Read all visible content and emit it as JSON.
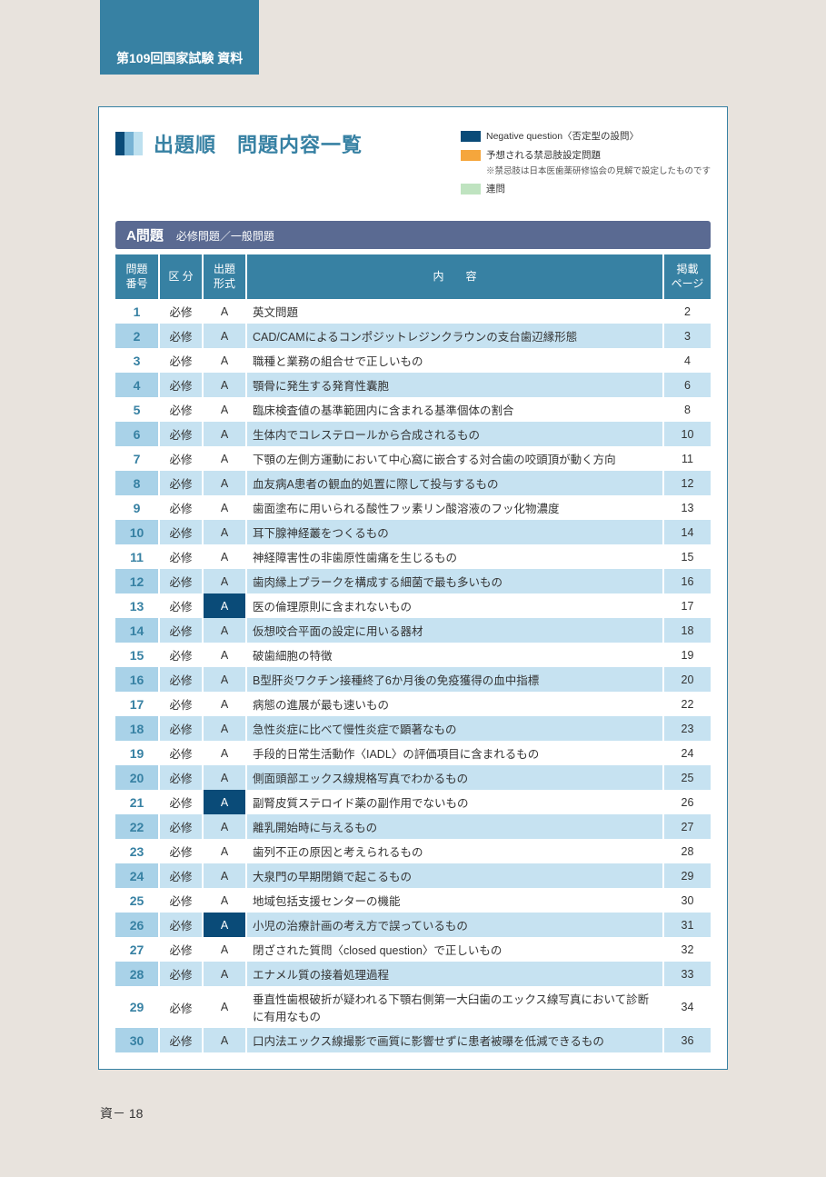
{
  "colors": {
    "page_bg": "#e8e3dd",
    "panel_bg": "#ffffff",
    "panel_border": "#3781a3",
    "tab_bg": "#3781a3",
    "tab_text": "#ffffff",
    "title_text": "#3781a3",
    "title_bar_1": "#0a4b78",
    "title_bar_2": "#77b3d4",
    "title_bar_3": "#bde0ef",
    "section_bar_bg": "#5a6a92",
    "section_bar_text": "#ffffff",
    "thead_bg": "#3781a3",
    "thead_text": "#ffffff",
    "row_even_bg": "#ffffff",
    "row_odd_bg": "#c6e2f1",
    "row_odd_num_bg": "#a9d2e8",
    "number_text": "#3781a3",
    "legend_negative": "#0a4b78",
    "legend_forbidden": "#f5a63c",
    "legend_linked": "#bfe3c0"
  },
  "tab_header": "第109回国家試験 資料",
  "main_title": "出題順　問題内容一覧",
  "legend": {
    "negative": {
      "label": "Negative question〈否定型の設問〉",
      "color": "#0a4b78"
    },
    "forbidden": {
      "label": "予想される禁忌肢設定問題",
      "note": "※禁忌肢は日本医歯薬研修協会の見解で設定したものです",
      "color": "#f5a63c"
    },
    "linked": {
      "label": "連問",
      "color": "#bfe3c0"
    }
  },
  "section": {
    "title": "A問題",
    "subtitle": "必修問題／一般問題"
  },
  "table": {
    "headers": {
      "num": "問題\n番号",
      "kubun": "区 分",
      "keishiki": "出題\n形式",
      "naiyou": "内　　容",
      "page": "掲載\nページ"
    },
    "rows": [
      {
        "num": "1",
        "kubun": "必修",
        "keishiki": "A",
        "format_flag": "",
        "naiyou": "英文問題",
        "page": "2"
      },
      {
        "num": "2",
        "kubun": "必修",
        "keishiki": "A",
        "format_flag": "",
        "naiyou": "CAD/CAMによるコンポジットレジンクラウンの支台歯辺縁形態",
        "page": "3"
      },
      {
        "num": "3",
        "kubun": "必修",
        "keishiki": "A",
        "format_flag": "",
        "naiyou": "職種と業務の組合せで正しいもの",
        "page": "4"
      },
      {
        "num": "4",
        "kubun": "必修",
        "keishiki": "A",
        "format_flag": "",
        "naiyou": "顎骨に発生する発育性囊胞",
        "page": "6"
      },
      {
        "num": "5",
        "kubun": "必修",
        "keishiki": "A",
        "format_flag": "",
        "naiyou": "臨床検査値の基準範囲内に含まれる基準個体の割合",
        "page": "8"
      },
      {
        "num": "6",
        "kubun": "必修",
        "keishiki": "A",
        "format_flag": "",
        "naiyou": "生体内でコレステロールから合成されるもの",
        "page": "10"
      },
      {
        "num": "7",
        "kubun": "必修",
        "keishiki": "A",
        "format_flag": "",
        "naiyou": "下顎の左側方運動において中心窩に嵌合する対合歯の咬頭頂が動く方向",
        "page": "11"
      },
      {
        "num": "8",
        "kubun": "必修",
        "keishiki": "A",
        "format_flag": "",
        "naiyou": "血友病A患者の観血的処置に際して投与するもの",
        "page": "12"
      },
      {
        "num": "9",
        "kubun": "必修",
        "keishiki": "A",
        "format_flag": "",
        "naiyou": "歯面塗布に用いられる酸性フッ素リン酸溶液のフッ化物濃度",
        "page": "13"
      },
      {
        "num": "10",
        "kubun": "必修",
        "keishiki": "A",
        "format_flag": "",
        "naiyou": "耳下腺神経叢をつくるもの",
        "page": "14"
      },
      {
        "num": "11",
        "kubun": "必修",
        "keishiki": "A",
        "format_flag": "",
        "naiyou": "神経障害性の非歯原性歯痛を生じるもの",
        "page": "15"
      },
      {
        "num": "12",
        "kubun": "必修",
        "keishiki": "A",
        "format_flag": "",
        "naiyou": "歯肉縁上プラークを構成する細菌で最も多いもの",
        "page": "16"
      },
      {
        "num": "13",
        "kubun": "必修",
        "keishiki": "A",
        "format_flag": "negative",
        "naiyou": "医の倫理原則に含まれないもの",
        "page": "17"
      },
      {
        "num": "14",
        "kubun": "必修",
        "keishiki": "A",
        "format_flag": "",
        "naiyou": "仮想咬合平面の設定に用いる器材",
        "page": "18"
      },
      {
        "num": "15",
        "kubun": "必修",
        "keishiki": "A",
        "format_flag": "",
        "naiyou": "破歯細胞の特徴",
        "page": "19"
      },
      {
        "num": "16",
        "kubun": "必修",
        "keishiki": "A",
        "format_flag": "",
        "naiyou": "B型肝炎ワクチン接種終了6か月後の免疫獲得の血中指標",
        "page": "20"
      },
      {
        "num": "17",
        "kubun": "必修",
        "keishiki": "A",
        "format_flag": "",
        "naiyou": "病態の進展が最も速いもの",
        "page": "22"
      },
      {
        "num": "18",
        "kubun": "必修",
        "keishiki": "A",
        "format_flag": "",
        "naiyou": "急性炎症に比べて慢性炎症で顕著なもの",
        "page": "23"
      },
      {
        "num": "19",
        "kubun": "必修",
        "keishiki": "A",
        "format_flag": "",
        "naiyou": "手段的日常生活動作〈IADL〉の評価項目に含まれるもの",
        "page": "24"
      },
      {
        "num": "20",
        "kubun": "必修",
        "keishiki": "A",
        "format_flag": "",
        "naiyou": "側面頭部エックス線規格写真でわかるもの",
        "page": "25"
      },
      {
        "num": "21",
        "kubun": "必修",
        "keishiki": "A",
        "format_flag": "negative",
        "naiyou": "副腎皮質ステロイド薬の副作用でないもの",
        "page": "26"
      },
      {
        "num": "22",
        "kubun": "必修",
        "keishiki": "A",
        "format_flag": "",
        "naiyou": "離乳開始時に与えるもの",
        "page": "27"
      },
      {
        "num": "23",
        "kubun": "必修",
        "keishiki": "A",
        "format_flag": "",
        "naiyou": "歯列不正の原因と考えられるもの",
        "page": "28"
      },
      {
        "num": "24",
        "kubun": "必修",
        "keishiki": "A",
        "format_flag": "",
        "naiyou": "大泉門の早期閉鎖で起こるもの",
        "page": "29"
      },
      {
        "num": "25",
        "kubun": "必修",
        "keishiki": "A",
        "format_flag": "",
        "naiyou": "地域包括支援センターの機能",
        "page": "30"
      },
      {
        "num": "26",
        "kubun": "必修",
        "keishiki": "A",
        "format_flag": "negative",
        "naiyou": "小児の治療計画の考え方で誤っているもの",
        "page": "31"
      },
      {
        "num": "27",
        "kubun": "必修",
        "keishiki": "A",
        "format_flag": "",
        "naiyou": "閉ざされた質問〈closed question〉で正しいもの",
        "page": "32"
      },
      {
        "num": "28",
        "kubun": "必修",
        "keishiki": "A",
        "format_flag": "",
        "naiyou": "エナメル質の接着処理過程",
        "page": "33"
      },
      {
        "num": "29",
        "kubun": "必修",
        "keishiki": "A",
        "format_flag": "",
        "naiyou": "垂直性歯根破折が疑われる下顎右側第一大臼歯のエックス線写真において診断に有用なもの",
        "page": "34"
      },
      {
        "num": "30",
        "kubun": "必修",
        "keishiki": "A",
        "format_flag": "",
        "naiyou": "口内法エックス線撮影で画質に影響せずに患者被曝を低減できるもの",
        "page": "36"
      }
    ]
  },
  "footer": "資－ 18"
}
